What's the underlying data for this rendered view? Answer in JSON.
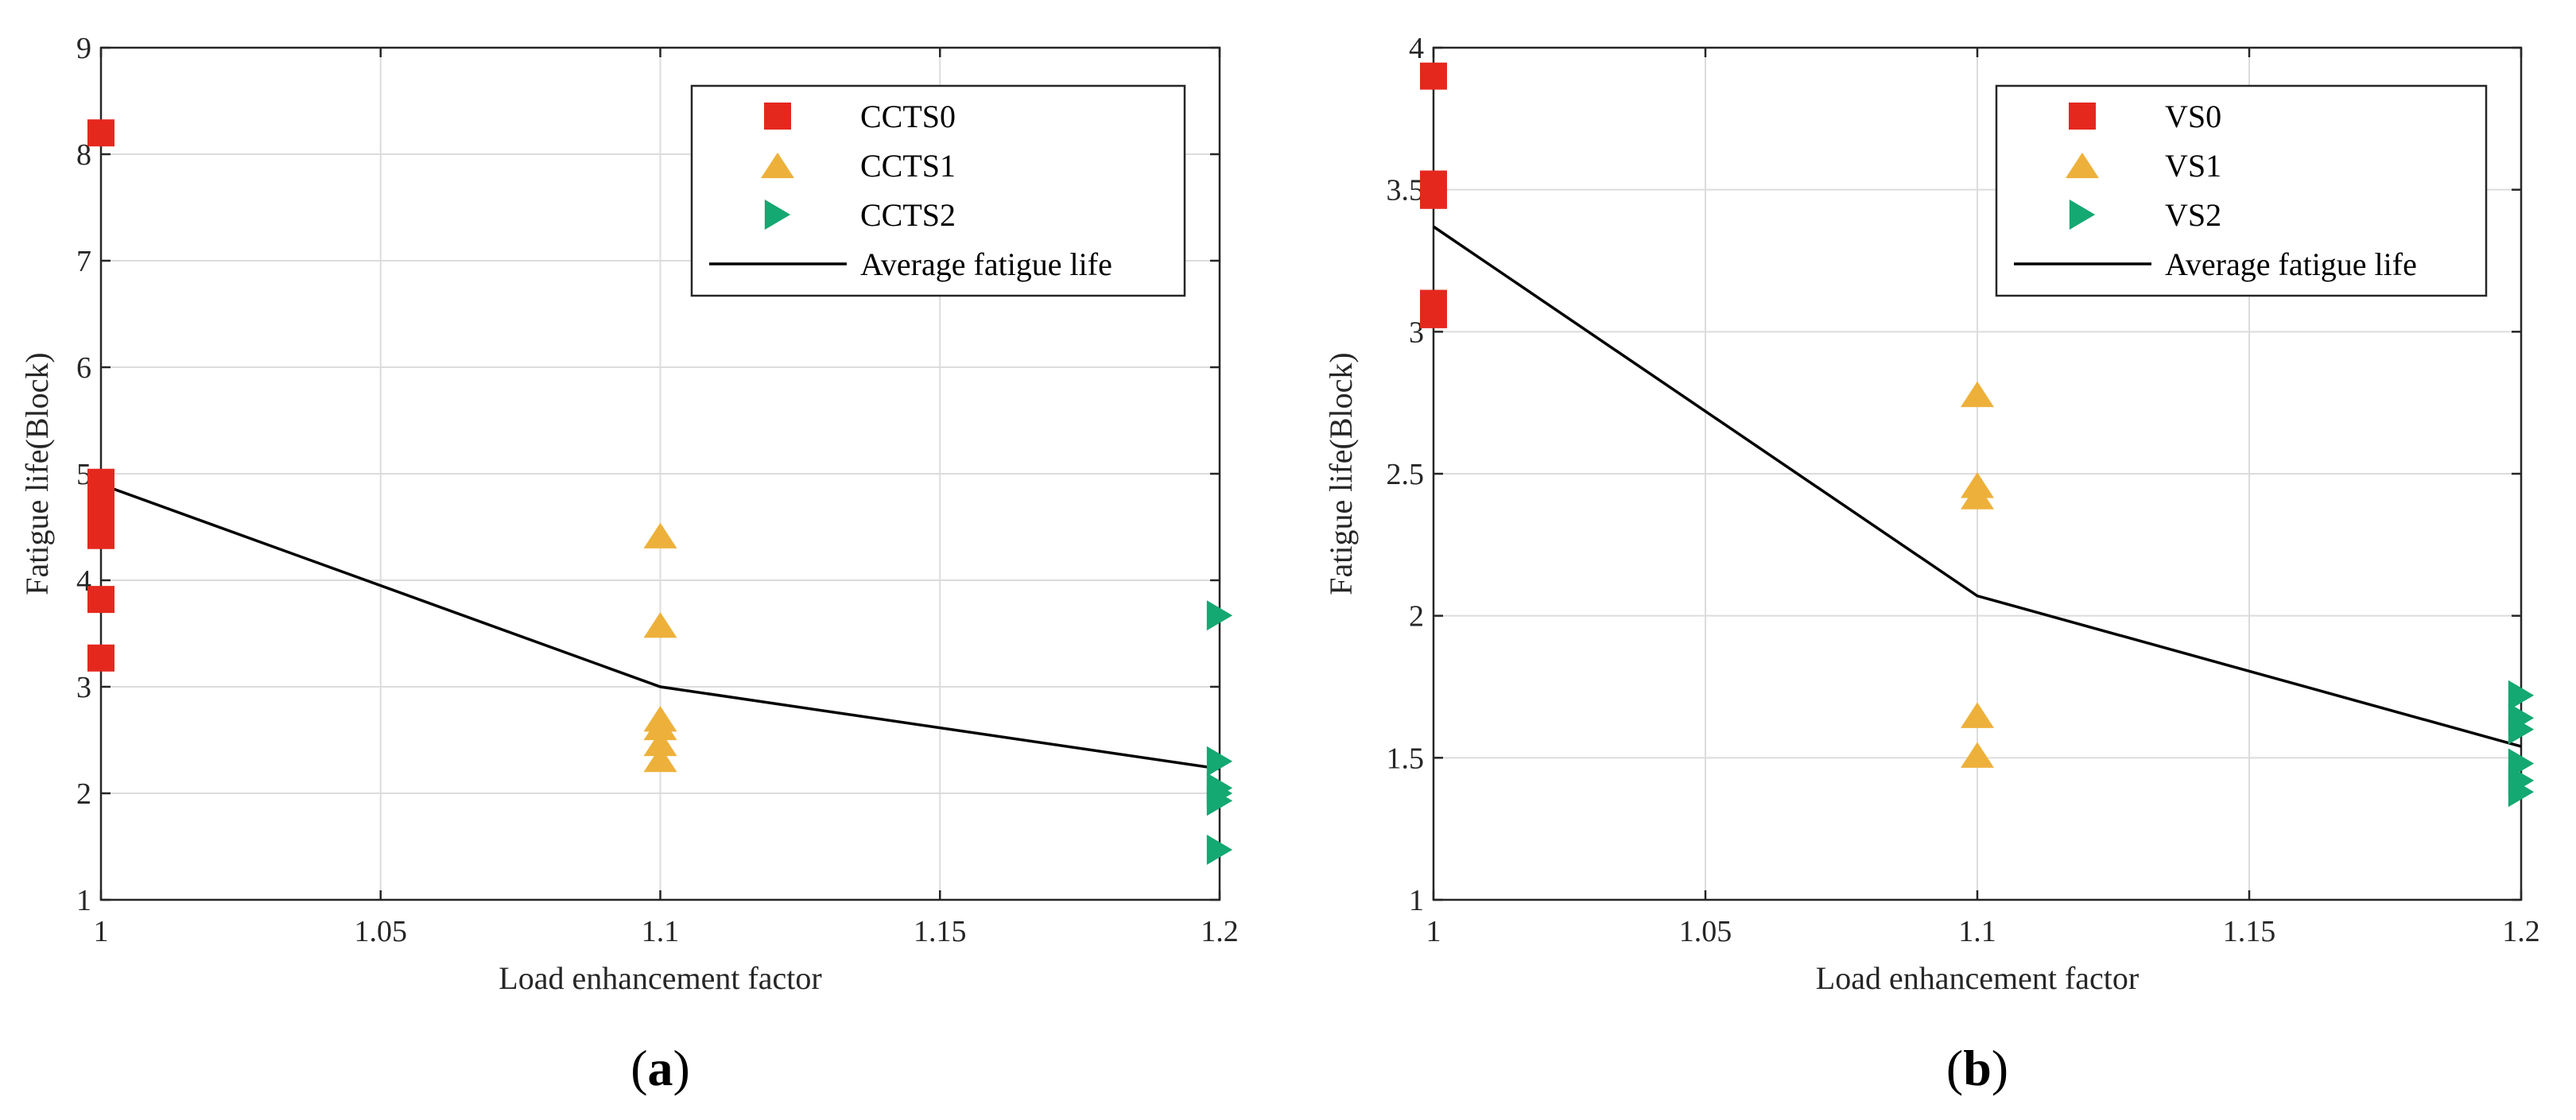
{
  "colors": {
    "series0": "#E5281E",
    "series1": "#EDB13B",
    "series2": "#14A872",
    "average": "#000000",
    "grid": "#DCDCDC",
    "axis": "#262626"
  },
  "chart_data": [
    {
      "type": "scatter",
      "panel_label": {
        "open": "(",
        "letter": "a",
        "close": ")"
      },
      "xlabel": "Load enhancement factor",
      "ylabel": "Fatigue life(Block)",
      "xlim": [
        1,
        1.2
      ],
      "ylim": [
        1,
        9
      ],
      "xticks": [
        1,
        1.05,
        1.1,
        1.15,
        1.2
      ],
      "xtick_labels": [
        "1",
        "1.05",
        "1.1",
        "1.15",
        "1.2"
      ],
      "yticks": [
        1,
        2,
        3,
        4,
        5,
        6,
        7,
        8,
        9
      ],
      "ytick_labels": [
        "1",
        "2",
        "3",
        "4",
        "5",
        "6",
        "7",
        "8",
        "9"
      ],
      "grid": true,
      "legend_position": "top-right",
      "series": [
        {
          "name": "CCTS0",
          "marker": "square",
          "color_key": "series0",
          "x": [
            1,
            1,
            1,
            1,
            1,
            1
          ],
          "y": [
            8.2,
            4.92,
            4.67,
            4.42,
            3.82,
            3.27
          ]
        },
        {
          "name": "CCTS1",
          "marker": "triangle-up",
          "color_key": "series1",
          "x": [
            1.1,
            1.1,
            1.1,
            1.1,
            1.1,
            1.1
          ],
          "y": [
            4.42,
            3.58,
            2.7,
            2.62,
            2.47,
            2.32
          ]
        },
        {
          "name": "CCTS2",
          "marker": "triangle-right",
          "color_key": "series2",
          "x": [
            1.2,
            1.2,
            1.2,
            1.2,
            1.2,
            1.2
          ],
          "y": [
            3.67,
            2.3,
            2.05,
            2.0,
            1.93,
            1.47
          ]
        },
        {
          "name": "Average fatigue life",
          "marker": "line",
          "color_key": "average",
          "x": [
            1,
            1.1,
            1.2
          ],
          "y": [
            4.9,
            3.0,
            2.23
          ]
        }
      ]
    },
    {
      "type": "scatter",
      "panel_label": {
        "open": "(",
        "letter": "b",
        "close": ")"
      },
      "xlabel": "Load enhancement factor",
      "ylabel": "Fatigue life(Block)",
      "xlim": [
        1,
        1.2
      ],
      "ylim": [
        1,
        4
      ],
      "xticks": [
        1,
        1.05,
        1.1,
        1.15,
        1.2
      ],
      "xtick_labels": [
        "1",
        "1.05",
        "1.1",
        "1.15",
        "1.2"
      ],
      "yticks": [
        1,
        1.5,
        2,
        2.5,
        3,
        3.5,
        4
      ],
      "ytick_labels": [
        "1",
        "1.5",
        "2",
        "2.5",
        "3",
        "3.5",
        "4"
      ],
      "grid": true,
      "legend_position": "top-right",
      "series": [
        {
          "name": "VS0",
          "marker": "square",
          "color_key": "series0",
          "x": [
            1,
            1,
            1,
            1,
            1
          ],
          "y": [
            3.9,
            3.52,
            3.48,
            3.1,
            3.06
          ]
        },
        {
          "name": "VS1",
          "marker": "triangle-up",
          "color_key": "series1",
          "x": [
            1.1,
            1.1,
            1.1,
            1.1,
            1.1
          ],
          "y": [
            2.78,
            2.46,
            2.42,
            1.65,
            1.51
          ]
        },
        {
          "name": "VS2",
          "marker": "triangle-right",
          "color_key": "series2",
          "x": [
            1.2,
            1.2,
            1.2,
            1.2,
            1.2,
            1.2
          ],
          "y": [
            1.72,
            1.64,
            1.6,
            1.48,
            1.42,
            1.38
          ]
        },
        {
          "name": "Average fatigue life",
          "marker": "line",
          "color_key": "average",
          "x": [
            1,
            1.1,
            1.2
          ],
          "y": [
            3.37,
            2.07,
            1.54
          ]
        }
      ]
    }
  ]
}
